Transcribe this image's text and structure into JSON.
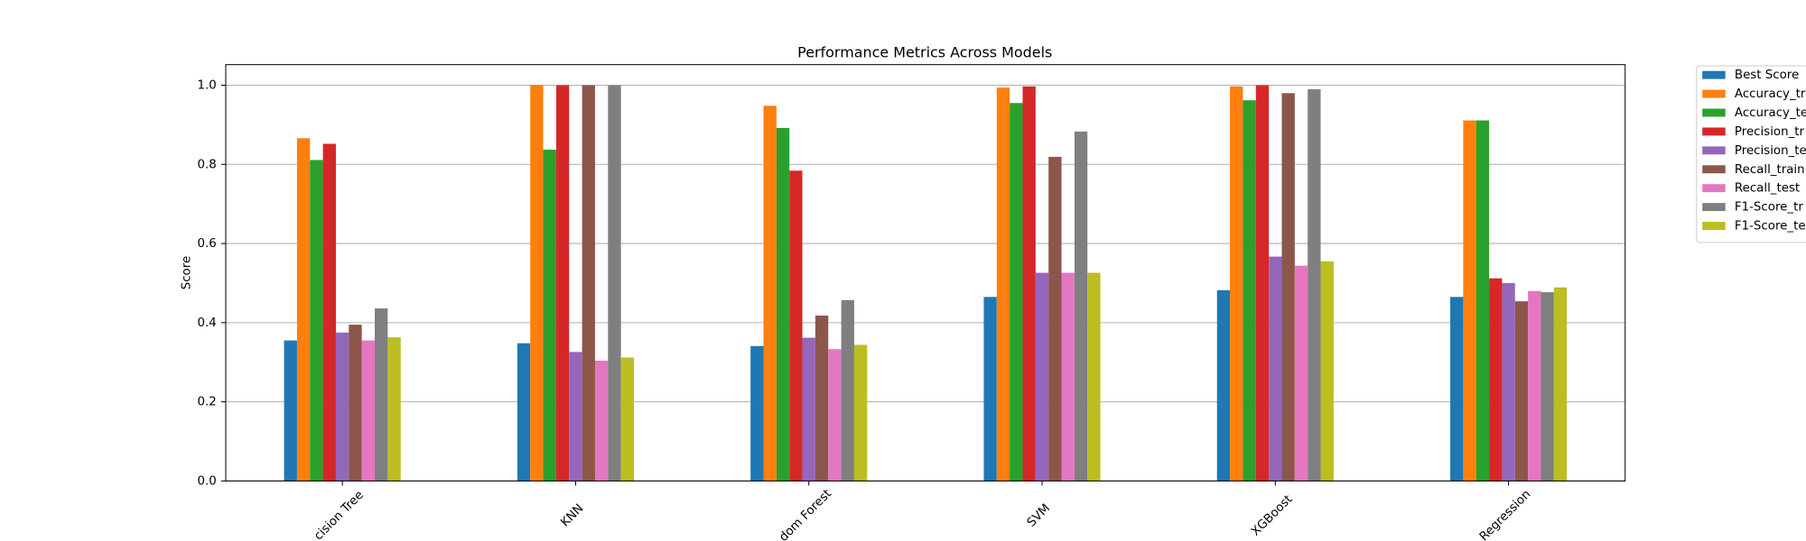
{
  "chart_data": {
    "type": "bar",
    "title": "Performance Metrics Across Models",
    "y_label": "Score",
    "categories": [
      "cision Tree",
      "KNN",
      "dom Forest",
      "SVM",
      "XGBoost",
      "Regression"
    ],
    "series": [
      {
        "name": "Best Score",
        "color": "#1f77b4",
        "values": [
          0.355,
          0.348,
          0.341,
          0.465,
          0.482,
          0.465
        ]
      },
      {
        "name": "Accuracy_tr",
        "color": "#ff7f0e",
        "values": [
          0.866,
          1.0,
          0.948,
          0.994,
          0.997,
          0.911
        ]
      },
      {
        "name": "Accuracy_te",
        "color": "#2ca02c",
        "values": [
          0.811,
          0.837,
          0.892,
          0.955,
          0.962,
          0.911
        ]
      },
      {
        "name": "Precision_tr",
        "color": "#d62728",
        "values": [
          0.852,
          1.0,
          0.784,
          0.997,
          1.0,
          0.512
        ]
      },
      {
        "name": "Precision_te",
        "color": "#9467bd",
        "values": [
          0.375,
          0.326,
          0.362,
          0.526,
          0.567,
          0.5
        ]
      },
      {
        "name": "Recall_train",
        "color": "#8c564b",
        "values": [
          0.395,
          1.0,
          0.418,
          0.819,
          0.98,
          0.454
        ]
      },
      {
        "name": "Recall_test",
        "color": "#e377c2",
        "values": [
          0.355,
          0.304,
          0.333,
          0.526,
          0.544,
          0.48
        ]
      },
      {
        "name": "F1-Score_tr",
        "color": "#7f7f7f",
        "values": [
          0.436,
          1.0,
          0.457,
          0.883,
          0.99,
          0.477
        ]
      },
      {
        "name": "F1-Score_te",
        "color": "#bcbd22",
        "values": [
          0.363,
          0.312,
          0.344,
          0.526,
          0.555,
          0.489
        ]
      }
    ],
    "ylim": [
      0,
      1.052
    ],
    "yticks": [
      {
        "value": 0,
        "label": "0.0"
      },
      0.2,
      0.4,
      0.6,
      0.8,
      {
        "value": 1,
        "label": "1.0"
      }
    ],
    "grid": true,
    "legend": "outside-right"
  }
}
